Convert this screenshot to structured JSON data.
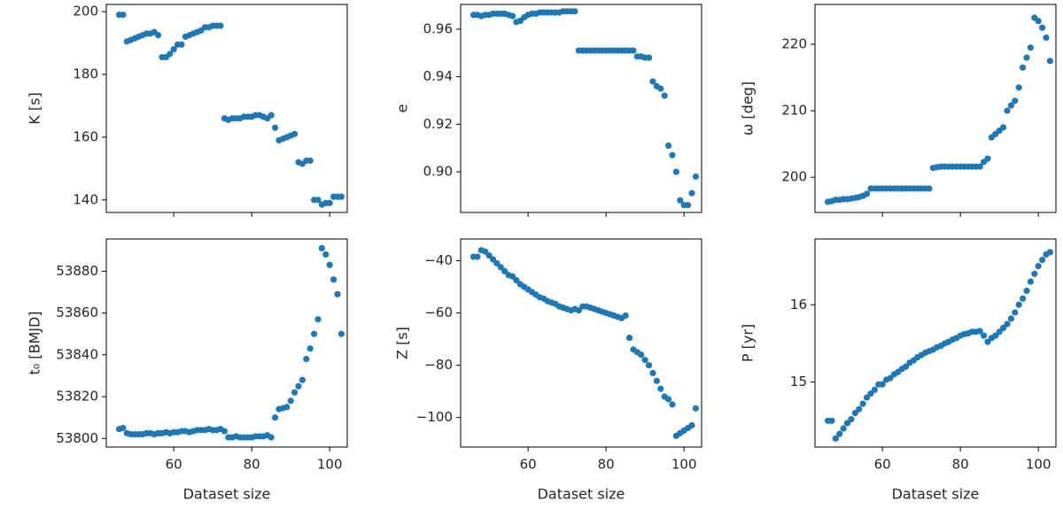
{
  "chart_data": [
    {
      "type": "scatter",
      "ylabel": "K [s]",
      "color": "#1f77b4",
      "x": [
        46,
        47,
        48,
        49,
        50,
        51,
        52,
        53,
        54,
        55,
        56,
        57,
        58,
        59,
        60,
        61,
        62,
        63,
        64,
        65,
        66,
        67,
        68,
        69,
        70,
        71,
        72,
        73,
        74,
        75,
        76,
        77,
        78,
        79,
        80,
        81,
        82,
        83,
        84,
        85,
        86,
        87,
        88,
        89,
        90,
        91,
        92,
        93,
        94,
        95,
        96,
        97,
        98,
        99,
        100,
        101,
        102,
        103
      ],
      "y": [
        199,
        199,
        190.5,
        191,
        191.5,
        192,
        192.5,
        193,
        193,
        193.5,
        192.5,
        185.5,
        185.5,
        186.5,
        188,
        189.5,
        189.5,
        192,
        192.5,
        193,
        193.5,
        194,
        195,
        195,
        195.5,
        195.5,
        195.5,
        166,
        165.5,
        166,
        166,
        166,
        166.5,
        166.5,
        166.5,
        167,
        167,
        166.5,
        166,
        167,
        163,
        159,
        159.5,
        160,
        160.5,
        161,
        152,
        151.5,
        152.5,
        152.5,
        140,
        140,
        138.5,
        139,
        139,
        141,
        141,
        141
      ],
      "xlim": [
        42.7,
        104.5
      ],
      "xticks": [
        60,
        80,
        100
      ],
      "ylim": [
        136,
        202.3
      ],
      "yticks": [
        140,
        160,
        180,
        200
      ]
    },
    {
      "type": "scatter",
      "ylabel": "e",
      "color": "#1f77b4",
      "x": [
        46,
        47,
        48,
        49,
        50,
        51,
        52,
        53,
        54,
        55,
        56,
        57,
        58,
        59,
        60,
        61,
        62,
        63,
        64,
        65,
        66,
        67,
        68,
        69,
        70,
        71,
        72,
        73,
        74,
        75,
        76,
        77,
        78,
        79,
        80,
        81,
        82,
        83,
        84,
        85,
        86,
        87,
        88,
        89,
        90,
        91,
        92,
        93,
        94,
        95,
        96,
        97,
        98,
        99,
        100,
        101,
        102,
        103
      ],
      "y": [
        0.966,
        0.966,
        0.9655,
        0.966,
        0.966,
        0.9665,
        0.9665,
        0.9665,
        0.9665,
        0.966,
        0.9655,
        0.963,
        0.9635,
        0.965,
        0.966,
        0.9665,
        0.9665,
        0.967,
        0.967,
        0.967,
        0.967,
        0.967,
        0.967,
        0.9675,
        0.9675,
        0.9675,
        0.9675,
        0.951,
        0.951,
        0.951,
        0.951,
        0.951,
        0.951,
        0.951,
        0.951,
        0.951,
        0.951,
        0.951,
        0.951,
        0.951,
        0.951,
        0.951,
        0.9485,
        0.9485,
        0.948,
        0.948,
        0.938,
        0.936,
        0.935,
        0.932,
        0.911,
        0.907,
        0.9,
        0.888,
        0.886,
        0.886,
        0.891,
        0.898
      ],
      "xlim": [
        42.7,
        104.5
      ],
      "xticks": [
        60,
        80,
        100
      ],
      "ylim": [
        0.8829,
        0.9704
      ],
      "yticks": [
        {
          "value": 0.9,
          "label": "0.90"
        },
        0.92,
        0.94,
        0.96
      ]
    },
    {
      "type": "scatter",
      "ylabel": "ω [deg]",
      "color": "#1f77b4",
      "x": [
        46,
        47,
        48,
        49,
        50,
        51,
        52,
        53,
        54,
        55,
        56,
        57,
        58,
        59,
        60,
        61,
        62,
        63,
        64,
        65,
        66,
        67,
        68,
        69,
        70,
        71,
        72,
        73,
        74,
        75,
        76,
        77,
        78,
        79,
        80,
        81,
        82,
        83,
        84,
        85,
        86,
        87,
        88,
        89,
        90,
        91,
        92,
        93,
        94,
        95,
        96,
        97,
        98,
        99,
        100,
        101,
        102,
        103
      ],
      "y": [
        196.3,
        196.4,
        196.6,
        196.6,
        196.7,
        196.7,
        196.8,
        196.9,
        197,
        197.2,
        197.5,
        198.3,
        198.3,
        198.3,
        198.3,
        198.3,
        198.3,
        198.3,
        198.3,
        198.3,
        198.3,
        198.3,
        198.3,
        198.3,
        198.3,
        198.3,
        198.3,
        201.4,
        201.5,
        201.6,
        201.6,
        201.6,
        201.6,
        201.6,
        201.6,
        201.6,
        201.6,
        201.6,
        201.6,
        201.6,
        202.3,
        202.8,
        206,
        206.5,
        207,
        207.5,
        210,
        210.8,
        211.5,
        213.5,
        216.5,
        218,
        219.5,
        224,
        223.5,
        222.5,
        221,
        217.5
      ],
      "xlim": [
        42.7,
        104.5
      ],
      "xticks": [
        60,
        80,
        100
      ],
      "ylim": [
        194.7,
        226
      ],
      "yticks": [
        200,
        210,
        220
      ]
    },
    {
      "type": "scatter",
      "ylabel": "t₀ [BMJD]",
      "xlabel": "Dataset size",
      "color": "#1f77b4",
      "x": [
        46,
        47,
        48,
        49,
        50,
        51,
        52,
        53,
        54,
        55,
        56,
        57,
        58,
        59,
        60,
        61,
        62,
        63,
        64,
        65,
        66,
        67,
        68,
        69,
        70,
        71,
        72,
        73,
        74,
        75,
        76,
        77,
        78,
        79,
        80,
        81,
        82,
        83,
        84,
        85,
        86,
        87,
        88,
        89,
        90,
        91,
        92,
        93,
        94,
        95,
        96,
        97,
        98,
        99,
        100,
        101,
        102,
        103
      ],
      "y": [
        53804.5,
        53805,
        53802.5,
        53802,
        53802,
        53802,
        53802,
        53802.5,
        53802.5,
        53802,
        53802.5,
        53802.5,
        53803,
        53802.5,
        53803,
        53803,
        53803.5,
        53803.5,
        53803,
        53803.5,
        53804,
        53804,
        53804,
        53804.5,
        53804,
        53804,
        53804.5,
        53803.5,
        53800.5,
        53800.5,
        53801,
        53800.5,
        53800.5,
        53800.5,
        53800.5,
        53801,
        53801,
        53801,
        53801.5,
        53800.5,
        53810,
        53814,
        53814.5,
        53815,
        53818,
        53822,
        53825,
        53828,
        53838,
        53843,
        53850,
        53857,
        53891,
        53888,
        53883,
        53876,
        53869,
        53850
      ],
      "xlim": [
        42.7,
        104.5
      ],
      "xticks": [
        60,
        80,
        100
      ],
      "ylim": [
        53795.9,
        53895.4
      ],
      "yticks": [
        53800,
        53820,
        53840,
        53860,
        53880
      ]
    },
    {
      "type": "scatter",
      "ylabel": "Z [s]",
      "xlabel": "Dataset size",
      "color": "#1f77b4",
      "x": [
        46,
        47,
        48,
        49,
        50,
        51,
        52,
        53,
        54,
        55,
        56,
        57,
        58,
        59,
        60,
        61,
        62,
        63,
        64,
        65,
        66,
        67,
        68,
        69,
        70,
        71,
        72,
        73,
        74,
        75,
        76,
        77,
        78,
        79,
        80,
        81,
        82,
        83,
        84,
        85,
        86,
        87,
        88,
        89,
        90,
        91,
        92,
        93,
        94,
        95,
        96,
        97,
        98,
        99,
        100,
        101,
        102,
        103
      ],
      "y": [
        -38.5,
        -38.5,
        -36,
        -36.5,
        -38,
        -39.5,
        -41,
        -42.5,
        -44,
        -45.5,
        -46,
        -47.5,
        -49,
        -50,
        -51,
        -52,
        -53,
        -54,
        -54.5,
        -55.5,
        -56,
        -56.5,
        -57.5,
        -58,
        -58.5,
        -59,
        -58.5,
        -59,
        -57.5,
        -57.5,
        -58,
        -58.5,
        -59,
        -59.5,
        -60,
        -60.5,
        -61,
        -61.5,
        -62,
        -61,
        -69.5,
        -74,
        -75,
        -76,
        -78,
        -80,
        -83,
        -86,
        -89,
        -92,
        -93,
        -95,
        -107,
        -106,
        -105,
        -104,
        -103,
        -96.5
      ],
      "xlim": [
        42.7,
        104.5
      ],
      "xticks": [
        60,
        80,
        100
      ],
      "ylim": [
        -111.3,
        -31.7
      ],
      "yticks": [
        {
          "value": -100,
          "label": "−100"
        },
        {
          "value": -80,
          "label": "−80"
        },
        {
          "value": -60,
          "label": "−60"
        },
        {
          "value": -40,
          "label": "−40"
        }
      ]
    },
    {
      "type": "scatter",
      "ylabel": "P [yr]",
      "xlabel": "Dataset size",
      "color": "#1f77b4",
      "x": [
        46,
        47,
        48,
        49,
        50,
        51,
        52,
        53,
        54,
        55,
        56,
        57,
        58,
        59,
        60,
        61,
        62,
        63,
        64,
        65,
        66,
        67,
        68,
        69,
        70,
        71,
        72,
        73,
        74,
        75,
        76,
        77,
        78,
        79,
        80,
        81,
        82,
        83,
        84,
        85,
        86,
        87,
        88,
        89,
        90,
        91,
        92,
        93,
        94,
        95,
        96,
        97,
        98,
        99,
        100,
        101,
        102,
        103
      ],
      "y": [
        14.5,
        14.5,
        14.27,
        14.33,
        14.4,
        14.47,
        14.52,
        14.6,
        14.65,
        14.72,
        14.8,
        14.85,
        14.9,
        14.97,
        14.97,
        15.03,
        15.05,
        15.1,
        15.13,
        15.17,
        15.2,
        15.25,
        15.28,
        15.32,
        15.35,
        15.38,
        15.4,
        15.42,
        15.45,
        15.47,
        15.5,
        15.52,
        15.55,
        15.57,
        15.6,
        15.62,
        15.63,
        15.65,
        15.65,
        15.66,
        15.6,
        15.52,
        15.57,
        15.6,
        15.65,
        15.7,
        15.75,
        15.82,
        15.9,
        16,
        16.08,
        16.18,
        16.3,
        16.4,
        16.5,
        16.58,
        16.65,
        16.68
      ],
      "xlim": [
        42.7,
        104.5
      ],
      "xticks": [
        60,
        80,
        100
      ],
      "ylim": [
        14.16,
        16.85
      ],
      "yticks": [
        15,
        16
      ]
    }
  ]
}
